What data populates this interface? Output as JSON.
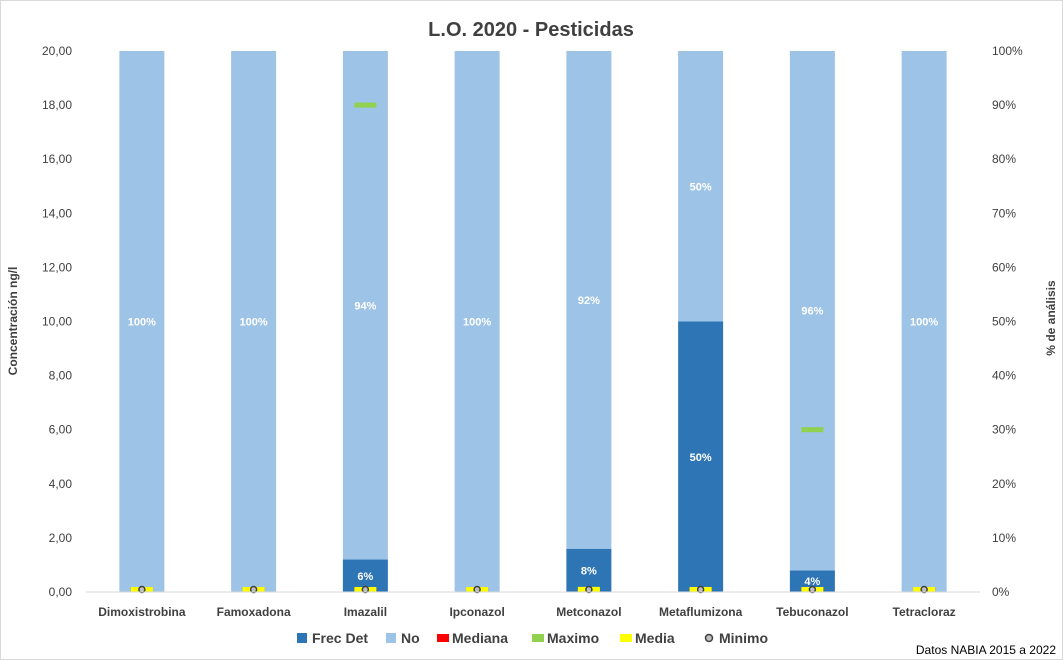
{
  "chart_data": {
    "type": "bar",
    "title": "L.O. 2020 - Pesticidas",
    "ylabel": "Concentración ng/l",
    "y2label": "% de análisis",
    "ylim": [
      0,
      20
    ],
    "y2lim": [
      0,
      100
    ],
    "yticks": [
      "0,00",
      "2,00",
      "4,00",
      "6,00",
      "8,00",
      "10,00",
      "12,00",
      "14,00",
      "16,00",
      "18,00",
      "20,00"
    ],
    "y2ticks": [
      "0%",
      "10%",
      "20%",
      "30%",
      "40%",
      "50%",
      "60%",
      "70%",
      "80%",
      "90%",
      "100%"
    ],
    "categories": [
      "Dimoxistrobina",
      "Famoxadona",
      "Imazalil",
      "Ipconazol",
      "Metconazol",
      "Metaflumizona",
      "Tebuconazol",
      "Tetracloraz"
    ],
    "stacked_series": [
      {
        "name": "Frec Det",
        "color": "#2e75b6",
        "axis": "y2",
        "values": [
          0,
          0,
          6,
          0,
          8,
          50,
          4,
          0
        ],
        "labels": [
          "",
          "",
          "6%",
          "",
          "8%",
          "50%",
          "4%",
          ""
        ]
      },
      {
        "name": "No",
        "color": "#9dc3e6",
        "axis": "y2",
        "values": [
          100,
          100,
          94,
          100,
          92,
          50,
          96,
          100
        ],
        "labels": [
          "100%",
          "100%",
          "94%",
          "100%",
          "92%",
          "50%",
          "96%",
          "100%"
        ]
      }
    ],
    "marker_series": [
      {
        "name": "Mediana",
        "color": "#ff0000",
        "shape": "dash",
        "values": [
          0,
          0,
          0,
          0,
          0,
          0,
          0,
          0
        ]
      },
      {
        "name": "Maximo",
        "color": "#92d050",
        "shape": "dash",
        "values": [
          0,
          0,
          18,
          0,
          0.1,
          0.05,
          6,
          0
        ]
      },
      {
        "name": "Media",
        "color": "#ffff00",
        "shape": "dash",
        "values": [
          0,
          0,
          0,
          0,
          0,
          0,
          0,
          0
        ]
      },
      {
        "name": "Minimo",
        "color": "#404040",
        "shape": "circle",
        "values": [
          0,
          0,
          0,
          0,
          0,
          0,
          0,
          0
        ]
      }
    ],
    "legend_position": "bottom",
    "grid": false
  },
  "source_note": "Datos NABIA 2015 a 2022"
}
